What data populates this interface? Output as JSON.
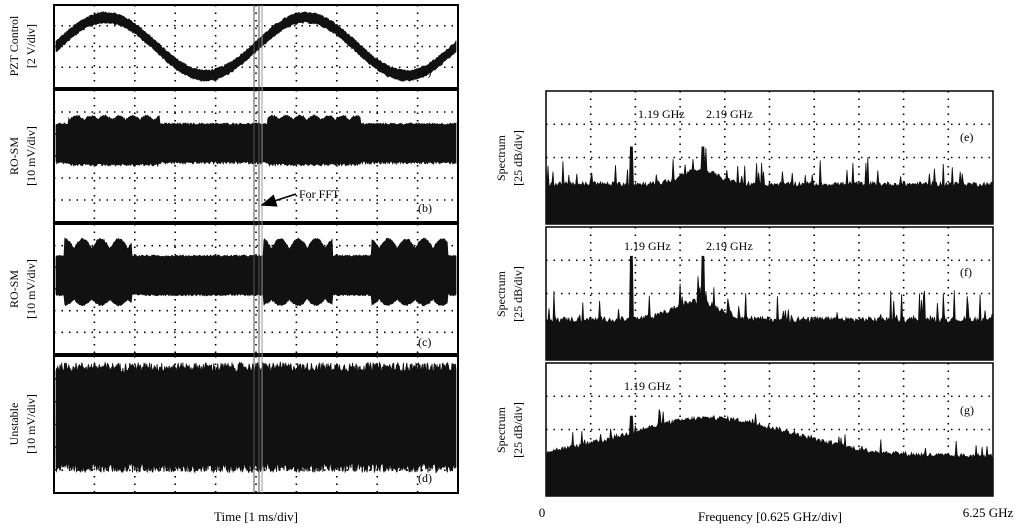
{
  "figure": {
    "left_xlabel": "Time [1 ms/div]",
    "right_xlabel": "Frequency [0.625 GHz/div]",
    "right_xtick_start": "0",
    "right_xtick_end": "6.25 GHz",
    "fft_annotation": "For FFT"
  },
  "chart_data": [
    {
      "type": "line",
      "panel": "(a)",
      "ylabel_line1": "PZT Control",
      "ylabel_line2": "[2 V/div]",
      "xlabel": "Time [1 ms/div]",
      "x_divisions": 10,
      "y_divisions": 4,
      "series": [
        {
          "description_only": false,
          "amplitude_div": 1.4,
          "period_div": 5.0,
          "phase_div": 1.25,
          "offset_div": 0.0
        }
      ]
    },
    {
      "type": "line",
      "panel": "(b)",
      "ylabel_line1": "RO-SM",
      "ylabel_line2": "[10 mV/div]",
      "xlabel": "Time [1 ms/div]",
      "x_divisions": 10,
      "y_divisions": 6
    },
    {
      "type": "line",
      "panel": "(c)",
      "ylabel_line1": "RO-SM",
      "ylabel_line2": "[10 mV/div]",
      "xlabel": "Time [1 ms/div]",
      "x_divisions": 10,
      "y_divisions": 6
    },
    {
      "type": "line",
      "panel": "(d)",
      "ylabel_line1": "Unstable",
      "ylabel_line2": "[10 mV/div]",
      "xlabel": "Time [1 ms/div]",
      "x_divisions": 10,
      "y_divisions": 6
    },
    {
      "type": "line",
      "panel": "(e)",
      "ylabel_line1": "Spectrum",
      "ylabel_line2": "[25 dB/div]",
      "xlabel": "Frequency [0.625 GHz/div]",
      "xlim_GHz": [
        0,
        6.25
      ],
      "x_divisions": 10,
      "y_divisions": 4,
      "peaks": [
        {
          "x_GHz": 1.19,
          "label": "1.19 GHz"
        },
        {
          "x_GHz": 2.19,
          "label": "2.19 GHz"
        }
      ]
    },
    {
      "type": "line",
      "panel": "(f)",
      "ylabel_line1": "Spectrum",
      "ylabel_line2": "[25 dB/div]",
      "xlabel": "Frequency [0.625 GHz/div]",
      "xlim_GHz": [
        0,
        6.25
      ],
      "x_divisions": 10,
      "y_divisions": 4,
      "peaks": [
        {
          "x_GHz": 1.19,
          "label": "1.19 GHz"
        },
        {
          "x_GHz": 2.19,
          "label": "2.19 GHz"
        }
      ]
    },
    {
      "type": "line",
      "panel": "(g)",
      "ylabel_line1": "Spectrum",
      "ylabel_line2": "[25 dB/div]",
      "xlabel": "Frequency [0.625 GHz/div]",
      "xlim_GHz": [
        0,
        6.25
      ],
      "x_divisions": 10,
      "y_divisions": 4,
      "peaks": [
        {
          "x_GHz": 1.19,
          "label": "1.19 GHz"
        }
      ]
    }
  ]
}
